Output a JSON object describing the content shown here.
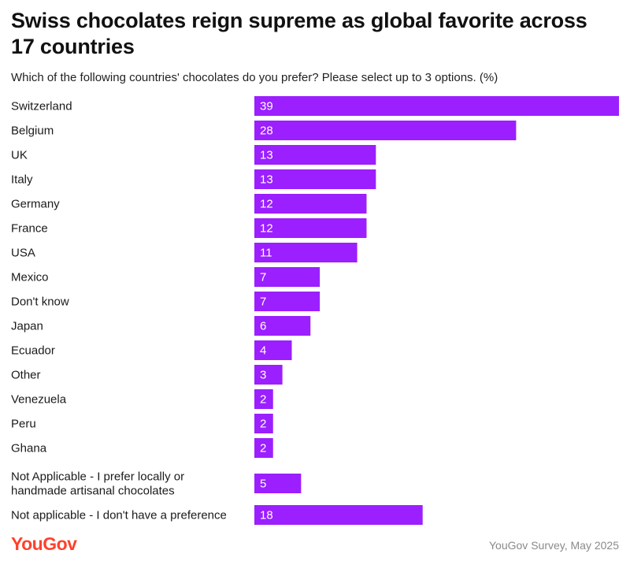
{
  "header": {
    "title": "Swiss chocolates reign supreme as global favorite across 17 countries",
    "subtitle": "Which of the following countries' chocolates do you prefer? Please select up to 3 options. (%)"
  },
  "footer": {
    "logo_text": "YouGov",
    "source": "YouGov Survey, May 2025"
  },
  "colors": {
    "bar": "#9b1fff",
    "logo": "#ff412c"
  },
  "chart_data": {
    "type": "bar",
    "orientation": "horizontal",
    "categories": [
      "Switzerland",
      "Belgium",
      "UK",
      "Italy",
      "Germany",
      "France",
      "USA",
      "Mexico",
      "Don't know",
      "Japan",
      "Ecuador",
      "Other",
      "Venezuela",
      "Peru",
      "Ghana",
      [
        "Not Applicable - I prefer locally or",
        "handmade artisanal chocolates"
      ],
      "Not applicable - I don't have a preference"
    ],
    "values": [
      39,
      28,
      13,
      13,
      12,
      12,
      11,
      7,
      7,
      6,
      4,
      3,
      2,
      2,
      2,
      5,
      18
    ],
    "xlim": [
      0,
      39
    ],
    "grid": false,
    "legend": "none",
    "data_labels": "inside-left"
  }
}
